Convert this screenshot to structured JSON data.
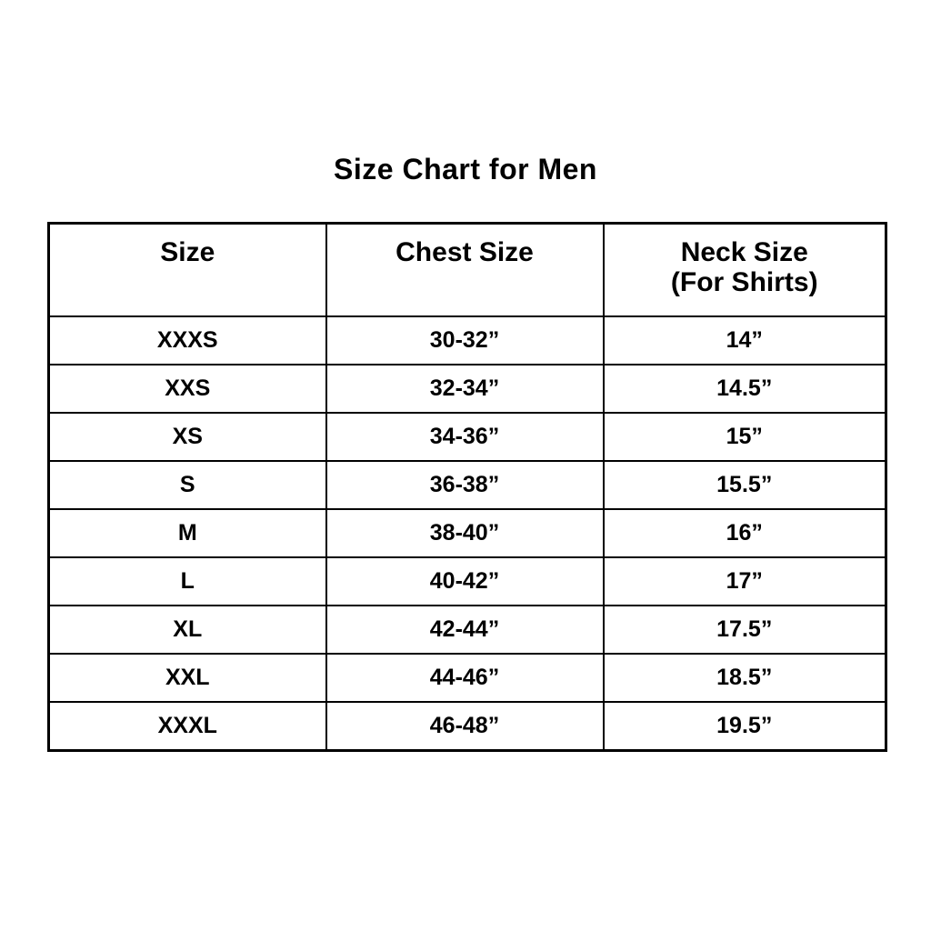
{
  "page": {
    "background_color": "#ffffff",
    "text_color": "#000000",
    "border_color": "#000000"
  },
  "chart_data": {
    "type": "table",
    "title": "Size Chart for Men",
    "columns": [
      {
        "label": "Size",
        "sublabel": ""
      },
      {
        "label": "Chest Size",
        "sublabel": ""
      },
      {
        "label": "Neck Size",
        "sublabel": "(For Shirts)"
      }
    ],
    "rows": [
      [
        "XXXS",
        "30-32”",
        "14”"
      ],
      [
        "XXS",
        "32-34”",
        "14.5”"
      ],
      [
        "XS",
        "34-36”",
        "15”"
      ],
      [
        "S",
        "36-38”",
        "15.5”"
      ],
      [
        "M",
        "38-40”",
        "16”"
      ],
      [
        "L",
        "40-42”",
        "17”"
      ],
      [
        "XL",
        "42-44”",
        "17.5”"
      ],
      [
        "XXL",
        "44-46”",
        "18.5”"
      ],
      [
        "XXXL",
        "46-48”",
        "19.5”"
      ]
    ]
  }
}
